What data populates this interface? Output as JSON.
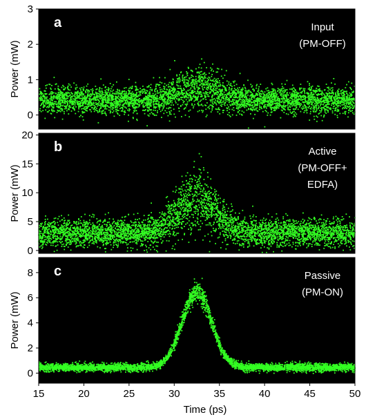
{
  "colors": {
    "background": "#000000",
    "points": "#33ff22",
    "text_on_plot": "#ffffff"
  },
  "chart_data": [
    {
      "type": "scatter",
      "panel": "a",
      "annotation": [
        "Input",
        "(PM-OFF)"
      ],
      "xlabel": "",
      "ylabel": "Power (mW)",
      "xlim": [
        15,
        50
      ],
      "ylim": [
        -0.4,
        3
      ],
      "yticks": [
        0,
        1,
        2,
        3
      ],
      "grid": false,
      "envelope": {
        "description_of_values": "point cloud around a baseline with a hump near 32.5 ps",
        "baseline_mean": 0.42,
        "baseline_spread": 0.22,
        "peak_x": 32.5,
        "peak_mean": 0.75,
        "peak_spread": 0.35,
        "hump_width": 3.2,
        "max_values": 1.7
      }
    },
    {
      "type": "scatter",
      "panel": "b",
      "annotation": [
        "Active",
        "(PM-OFF+",
        "EDFA)"
      ],
      "xlabel": "",
      "ylabel": "Power (mW)",
      "xlim": [
        15,
        50
      ],
      "ylim": [
        -0.5,
        20.3
      ],
      "yticks": [
        0,
        5,
        10,
        15,
        20
      ],
      "grid": false,
      "envelope": {
        "baseline_mean": 3.0,
        "baseline_spread": 1.4,
        "peak_x": 32.5,
        "peak_mean": 9.0,
        "peak_spread": 3.2,
        "hump_width": 3.0,
        "max_values": 20
      }
    },
    {
      "type": "scatter",
      "panel": "c",
      "annotation": [
        "Passive",
        "(PM-ON)"
      ],
      "xlabel": "Time (ps)",
      "ylabel": "Power (mW)",
      "xlim": [
        15,
        50
      ],
      "ylim": [
        -0.8,
        9.2
      ],
      "yticks": [
        0,
        2,
        4,
        6,
        8
      ],
      "xticks": [
        15,
        20,
        25,
        30,
        35,
        40,
        45,
        50
      ],
      "grid": false,
      "envelope": {
        "baseline_mean": 0.45,
        "baseline_spread": 0.18,
        "peak_x": 32.5,
        "peak_mean": 6.5,
        "peak_spread": 0.45,
        "hump_width": 2.3,
        "max_values": 8.6
      }
    }
  ]
}
